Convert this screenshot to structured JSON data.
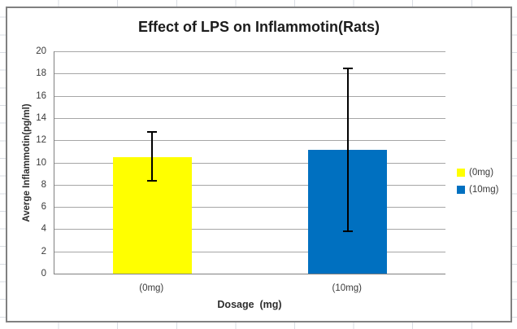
{
  "chart_data": {
    "type": "bar",
    "title": "Effect of LPS on Inflammotin(Rats)",
    "xlabel": "Dosage  (mg)",
    "ylabel": "Averge Inflammotin(pg/ml)",
    "categories": [
      "(0mg)",
      "(10mg)"
    ],
    "series": [
      {
        "name": "(0mg)",
        "value": 10.5,
        "error_low": 8.3,
        "error_high": 12.8,
        "color": "#FFFF00"
      },
      {
        "name": "(10mg)",
        "value": 11.1,
        "error_low": 3.7,
        "error_high": 18.5,
        "color": "#0070C0"
      }
    ],
    "ylim": [
      0,
      20
    ],
    "yticks": [
      0,
      2,
      4,
      6,
      8,
      10,
      12,
      14,
      16,
      18,
      20
    ],
    "grid": "horizontal-major",
    "legend_position": "right",
    "legend": [
      "(0mg)",
      "(10mg)"
    ],
    "error_bars": "both-directions-with-caps"
  },
  "colors": {
    "series_yellow": "#FFFF00",
    "series_blue": "#0070C0",
    "gridline": "#A6A6A6",
    "axis_line": "#808080",
    "chart_border": "#818181",
    "spreadsheet_gridline": "#D9DDE3",
    "error_bar": "#000000",
    "title_text": "#1C1C1C",
    "label_text": "#3A3A3A"
  }
}
